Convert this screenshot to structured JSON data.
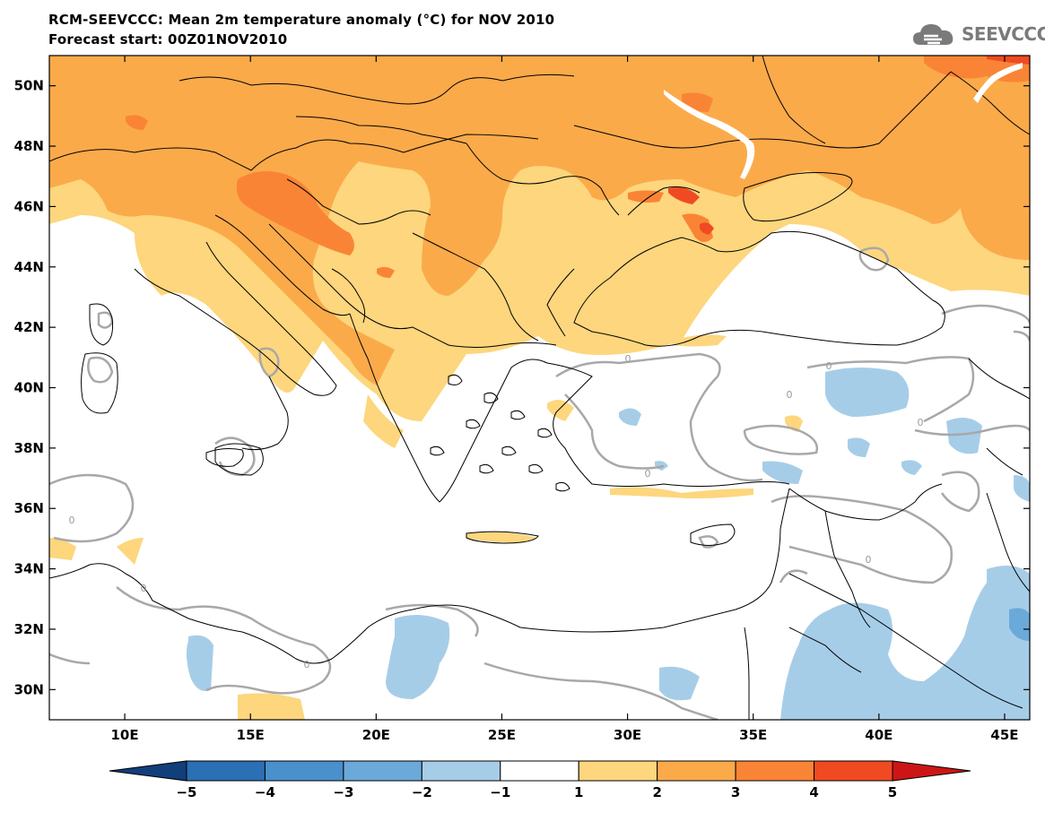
{
  "header": {
    "title": "RCM-SEEVCCC: Mean 2m temperature anomaly (°C) for NOV 2010",
    "subtitle": "Forecast start: 00Z01NOV2010",
    "logo_text": "SEEVCCC",
    "logo_icon": "cloud-logo-icon"
  },
  "map": {
    "lon_range": [
      7,
      46
    ],
    "lat_range": [
      29,
      51
    ],
    "lon_ticks": [
      {
        "value": 10,
        "label": "10E"
      },
      {
        "value": 15,
        "label": "15E"
      },
      {
        "value": 20,
        "label": "20E"
      },
      {
        "value": 25,
        "label": "25E"
      },
      {
        "value": 30,
        "label": "30E"
      },
      {
        "value": 35,
        "label": "35E"
      },
      {
        "value": 40,
        "label": "40E"
      },
      {
        "value": 45,
        "label": "45E"
      }
    ],
    "lat_ticks": [
      {
        "value": 50,
        "label": "50N"
      },
      {
        "value": 48,
        "label": "48N"
      },
      {
        "value": 46,
        "label": "46N"
      },
      {
        "value": 44,
        "label": "44N"
      },
      {
        "value": 42,
        "label": "42N"
      },
      {
        "value": 40,
        "label": "40N"
      },
      {
        "value": 38,
        "label": "38N"
      },
      {
        "value": 36,
        "label": "36N"
      },
      {
        "value": 34,
        "label": "34N"
      },
      {
        "value": 32,
        "label": "32N"
      },
      {
        "value": 30,
        "label": "30N"
      }
    ],
    "contour_labels": [
      "0",
      "0",
      "0",
      "0",
      "0",
      "0",
      "0"
    ]
  },
  "colorbar": {
    "labels": [
      "−5",
      "−4",
      "−3",
      "−2",
      "−1",
      "1",
      "2",
      "3",
      "4",
      "5"
    ],
    "colors": [
      "#1f5fa0",
      "#2b6fb4",
      "#4a90cc",
      "#6ba9da",
      "#a6cde8",
      "#ffffff",
      "#fdd67d",
      "#fbaa4a",
      "#fa8435",
      "#f04a23",
      "#dd1a1a"
    ],
    "end_low": "#123e7a",
    "end_high": "#cc1616"
  },
  "legend_colors": {
    "level1": "#fdd67d",
    "level2": "#fbaa4a",
    "level3": "#fa8435",
    "level4": "#f04a23",
    "neg1": "#a6cde8",
    "neg2": "#6ba9da",
    "contour": "#a8a8a8",
    "coast": "#000000"
  }
}
